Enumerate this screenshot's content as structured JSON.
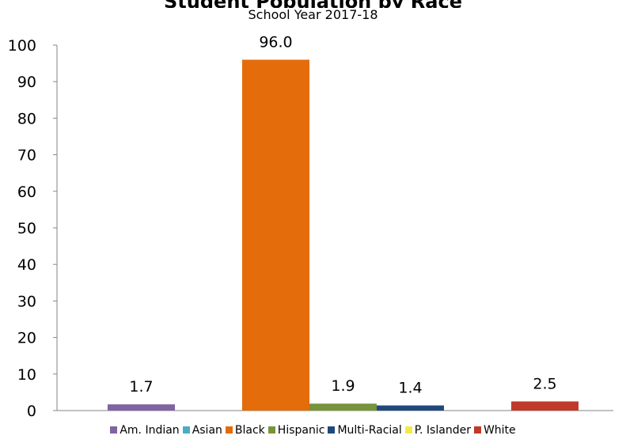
{
  "chart_data": {
    "type": "bar",
    "title": "Student Population by Race",
    "subtitle": "School Year 2017-18",
    "categories": [
      "Am. Indian",
      "Asian",
      "Black",
      "Hispanic",
      "Multi-Racial",
      "P. Islander",
      "White"
    ],
    "values": [
      1.7,
      0,
      96.0,
      1.9,
      1.4,
      0,
      2.5
    ],
    "value_labels": [
      "1.7",
      "",
      "96.0",
      "1.9",
      "1.4",
      "",
      "2.5"
    ],
    "colors": [
      "#8064A2",
      "#4BACC6",
      "#E46C0A",
      "#77933C",
      "#1F497D",
      "#F5E94A",
      "#C0392B"
    ],
    "ylim": [
      0,
      100
    ],
    "yticks": [
      0,
      10,
      20,
      30,
      40,
      50,
      60,
      70,
      80,
      90,
      100
    ],
    "xlabel": "",
    "ylabel": "",
    "grid": false,
    "legend_position": "bottom"
  }
}
